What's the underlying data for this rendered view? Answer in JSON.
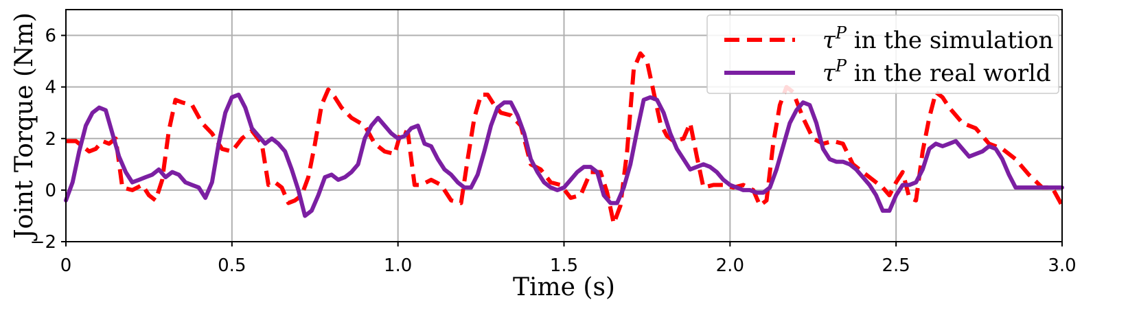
{
  "chart_data": {
    "type": "line",
    "xlabel": "Time (s)",
    "ylabel": "Joint Torque (Nm)",
    "xlim": [
      0,
      3.0
    ],
    "ylim": [
      -2,
      7
    ],
    "xticks": [
      0,
      0.5,
      1.0,
      1.5,
      2.0,
      2.5,
      3.0
    ],
    "xtick_labels": [
      "0",
      "0.5",
      "1.0",
      "1.5",
      "2.0",
      "2.5",
      "3.0"
    ],
    "yticks": [
      -2,
      0,
      2,
      4,
      6
    ],
    "ytick_labels": [
      "−2",
      "0",
      "2",
      "4",
      "6"
    ],
    "grid": true,
    "legend_position": "top-right",
    "series": [
      {
        "name": "τ^P in the simulation",
        "legend_symbol": "τ",
        "legend_sup": "P",
        "legend_suffix": " in the simulation",
        "color": "#ff0000",
        "style": "dashed",
        "x": [
          0,
          0.03,
          0.05,
          0.07,
          0.09,
          0.11,
          0.13,
          0.15,
          0.17,
          0.2,
          0.23,
          0.25,
          0.27,
          0.29,
          0.31,
          0.33,
          0.35,
          0.38,
          0.41,
          0.44,
          0.47,
          0.5,
          0.53,
          0.56,
          0.59,
          0.61,
          0.63,
          0.65,
          0.67,
          0.69,
          0.71,
          0.73,
          0.75,
          0.77,
          0.79,
          0.81,
          0.83,
          0.86,
          0.9,
          0.93,
          0.96,
          0.99,
          1.01,
          1.03,
          1.05,
          1.07,
          1.1,
          1.13,
          1.16,
          1.19,
          1.21,
          1.23,
          1.25,
          1.27,
          1.29,
          1.31,
          1.34,
          1.37,
          1.4,
          1.43,
          1.46,
          1.49,
          1.52,
          1.55,
          1.58,
          1.61,
          1.63,
          1.65,
          1.67,
          1.69,
          1.71,
          1.73,
          1.75,
          1.77,
          1.79,
          1.81,
          1.83,
          1.86,
          1.88,
          1.9,
          1.92,
          1.95,
          1.98,
          2.01,
          2.04,
          2.07,
          2.09,
          2.11,
          2.13,
          2.15,
          2.17,
          2.19,
          2.22,
          2.25,
          2.28,
          2.31,
          2.34,
          2.37,
          2.4,
          2.43,
          2.46,
          2.48,
          2.5,
          2.52,
          2.54,
          2.56,
          2.58,
          2.6,
          2.62,
          2.64,
          2.66,
          2.7,
          2.74,
          2.78,
          2.82,
          2.86,
          2.9,
          2.94,
          2.97,
          3.0
        ],
        "y": [
          1.9,
          1.9,
          1.7,
          1.5,
          1.6,
          1.9,
          1.8,
          2.0,
          0.1,
          0.0,
          0.2,
          -0.2,
          -0.4,
          0.4,
          2.3,
          3.5,
          3.4,
          3.3,
          2.6,
          2.2,
          1.6,
          1.5,
          2.0,
          2.3,
          1.8,
          0.2,
          0.3,
          0.1,
          -0.5,
          -0.4,
          -0.2,
          0.5,
          1.8,
          3.3,
          3.9,
          3.6,
          3.2,
          2.8,
          2.5,
          1.8,
          1.5,
          1.4,
          2.3,
          2.2,
          0.2,
          0.2,
          0.4,
          0.2,
          -0.4,
          -0.5,
          1.2,
          2.8,
          3.7,
          3.7,
          3.3,
          3.0,
          2.9,
          2.5,
          1.0,
          0.8,
          0.3,
          0.2,
          -0.3,
          -0.2,
          0.7,
          0.7,
          -0.1,
          -1.3,
          -0.6,
          1.5,
          4.7,
          5.3,
          5.0,
          3.8,
          2.6,
          2.1,
          1.9,
          2.0,
          2.6,
          1.3,
          0.1,
          0.2,
          0.2,
          0.1,
          0.2,
          0.0,
          -0.6,
          -0.4,
          1.8,
          3.3,
          4.0,
          3.8,
          2.8,
          2.0,
          1.8,
          1.9,
          1.8,
          1.0,
          0.7,
          0.4,
          0.1,
          -0.2,
          0.3,
          0.7,
          -0.3,
          -0.4,
          1.5,
          2.8,
          3.8,
          3.6,
          3.2,
          2.6,
          2.4,
          1.8,
          1.6,
          1.2,
          0.6,
          0.1,
          0.1,
          -0.6
        ]
      },
      {
        "name": "τ^P in the real world",
        "legend_symbol": "τ",
        "legend_sup": "P",
        "legend_suffix": " in the real world",
        "color": "#7b1fa2",
        "style": "solid",
        "x": [
          0.0,
          0.02,
          0.04,
          0.06,
          0.08,
          0.1,
          0.12,
          0.14,
          0.16,
          0.18,
          0.2,
          0.22,
          0.24,
          0.26,
          0.28,
          0.3,
          0.32,
          0.34,
          0.36,
          0.38,
          0.4,
          0.42,
          0.44,
          0.46,
          0.48,
          0.5,
          0.52,
          0.54,
          0.56,
          0.58,
          0.6,
          0.62,
          0.64,
          0.66,
          0.68,
          0.7,
          0.72,
          0.74,
          0.76,
          0.78,
          0.8,
          0.82,
          0.84,
          0.86,
          0.88,
          0.9,
          0.92,
          0.94,
          0.96,
          0.98,
          1.0,
          1.02,
          1.04,
          1.06,
          1.08,
          1.1,
          1.12,
          1.14,
          1.16,
          1.18,
          1.2,
          1.22,
          1.24,
          1.26,
          1.28,
          1.3,
          1.32,
          1.34,
          1.36,
          1.38,
          1.4,
          1.42,
          1.44,
          1.46,
          1.48,
          1.5,
          1.52,
          1.54,
          1.56,
          1.58,
          1.6,
          1.62,
          1.64,
          1.66,
          1.68,
          1.7,
          1.72,
          1.74,
          1.76,
          1.78,
          1.8,
          1.82,
          1.84,
          1.86,
          1.88,
          1.9,
          1.92,
          1.94,
          1.96,
          1.98,
          2.0,
          2.02,
          2.04,
          2.06,
          2.08,
          2.1,
          2.12,
          2.14,
          2.16,
          2.18,
          2.2,
          2.22,
          2.24,
          2.26,
          2.28,
          2.3,
          2.32,
          2.34,
          2.36,
          2.38,
          2.4,
          2.42,
          2.44,
          2.46,
          2.48,
          2.5,
          2.52,
          2.54,
          2.56,
          2.58,
          2.6,
          2.62,
          2.64,
          2.66,
          2.68,
          2.7,
          2.72,
          2.74,
          2.76,
          2.78,
          2.8,
          2.82,
          2.84,
          2.86,
          2.88,
          2.9,
          2.92,
          2.94,
          2.96,
          2.98,
          3.0
        ],
        "y": [
          -0.4,
          0.3,
          1.5,
          2.5,
          3.0,
          3.2,
          3.1,
          2.2,
          1.3,
          0.7,
          0.3,
          0.4,
          0.5,
          0.6,
          0.8,
          0.5,
          0.7,
          0.6,
          0.3,
          0.2,
          0.1,
          -0.3,
          0.3,
          1.8,
          3.0,
          3.6,
          3.7,
          3.2,
          2.4,
          2.1,
          1.8,
          2.0,
          1.8,
          1.5,
          0.8,
          0.0,
          -1.0,
          -0.8,
          -0.2,
          0.5,
          0.6,
          0.4,
          0.5,
          0.7,
          1.0,
          2.0,
          2.5,
          2.8,
          2.5,
          2.2,
          2.0,
          2.1,
          2.4,
          2.5,
          1.8,
          1.7,
          1.2,
          0.8,
          0.6,
          0.3,
          0.1,
          0.1,
          0.6,
          1.5,
          2.5,
          3.2,
          3.4,
          3.4,
          2.9,
          2.2,
          1.2,
          0.7,
          0.3,
          0.1,
          0.0,
          0.1,
          0.4,
          0.7,
          0.9,
          0.9,
          0.7,
          -0.2,
          -0.5,
          -0.5,
          0.1,
          1.0,
          2.3,
          3.5,
          3.6,
          3.5,
          3.0,
          2.2,
          1.6,
          1.2,
          0.8,
          0.9,
          1.0,
          0.9,
          0.7,
          0.4,
          0.2,
          0.1,
          0.0,
          0.0,
          -0.1,
          -0.1,
          0.1,
          0.8,
          1.7,
          2.6,
          3.1,
          3.4,
          3.3,
          2.6,
          1.6,
          1.2,
          1.1,
          1.1,
          1.0,
          0.8,
          0.5,
          0.2,
          -0.2,
          -0.8,
          -0.8,
          -0.2,
          0.2,
          0.2,
          0.3,
          0.8,
          1.6,
          1.8,
          1.7,
          1.8,
          1.9,
          1.6,
          1.3,
          1.4,
          1.5,
          1.7,
          1.6,
          1.2,
          0.6,
          0.1,
          0.1,
          0.1,
          0.1,
          0.1,
          0.1,
          0.1,
          0.1
        ]
      }
    ]
  }
}
